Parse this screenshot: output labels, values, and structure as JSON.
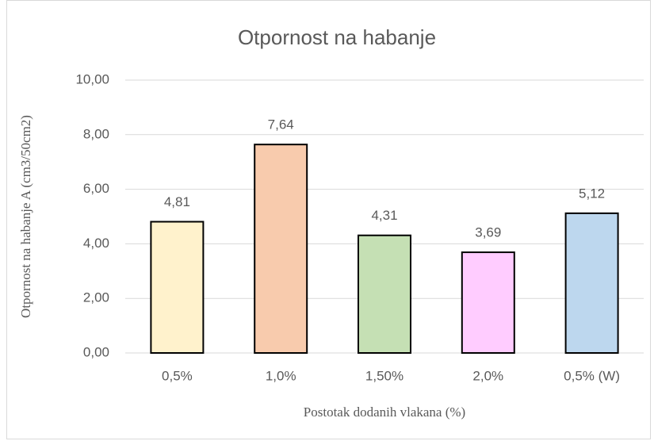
{
  "chart_data": {
    "type": "bar",
    "title": "Otpornost  na habanje",
    "y_axis_label": "Otpornost na habanje A (cm3/50cm2)",
    "x_axis_label": "Postotak dodanih vlakana (%)",
    "categories": [
      "0,5%",
      "1,0%",
      "1,50%",
      "2,0%",
      "0,5% (W)"
    ],
    "values": [
      4.81,
      7.64,
      4.31,
      3.69,
      5.12
    ],
    "value_labels": [
      "4,81",
      "7,64",
      "4,31",
      "3,69",
      "5,12"
    ],
    "colors": [
      "#fff2cc",
      "#f8cbad",
      "#c5e0b4",
      "#ffccff",
      "#bdd7ee"
    ],
    "ylim": [
      0,
      10
    ],
    "yticks": [
      {
        "value": 0,
        "label": "0,00"
      },
      {
        "value": 2,
        "label": "2,00"
      },
      {
        "value": 4,
        "label": "4,00"
      },
      {
        "value": 6,
        "label": "6,00"
      },
      {
        "value": 8,
        "label": "8,00"
      },
      {
        "value": 10,
        "label": "10,00"
      }
    ],
    "grid": true
  }
}
